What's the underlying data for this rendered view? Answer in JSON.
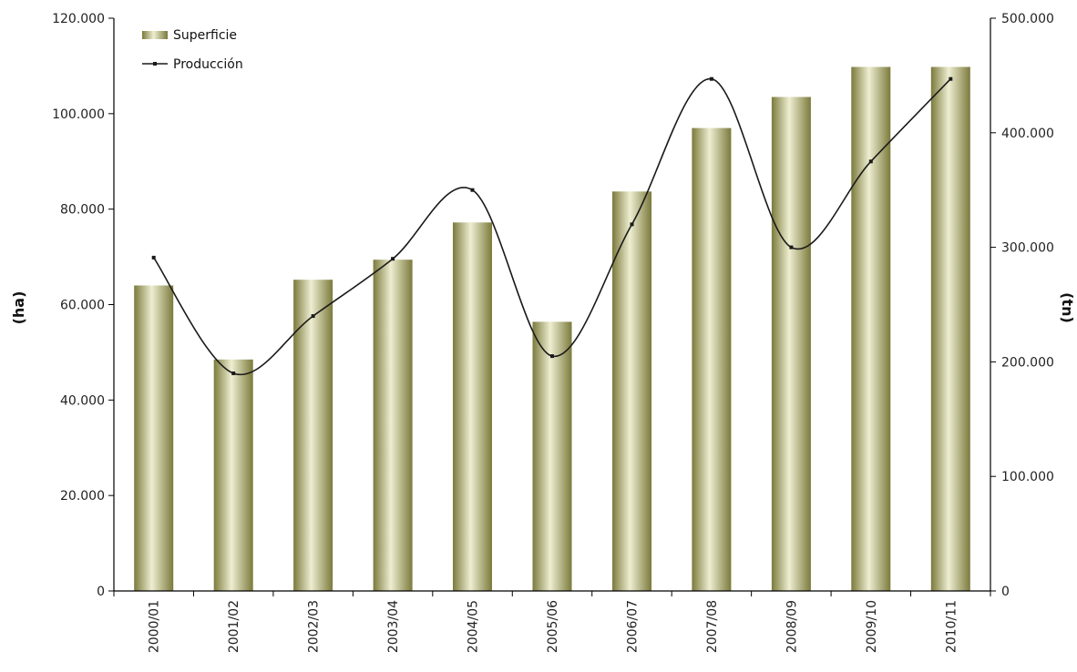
{
  "chart_data": {
    "type": "bar",
    "title": "",
    "categories": [
      "2000/01",
      "2001/02",
      "2002/03",
      "2003/04",
      "2004/05",
      "2005/06",
      "2006/07",
      "2007/08",
      "2008/09",
      "2009/10",
      "2010/11"
    ],
    "series": [
      {
        "name": "Superficie",
        "type": "bar",
        "axis": "left",
        "values": [
          64000,
          48500,
          65200,
          69400,
          77200,
          56400,
          83700,
          97000,
          103500,
          109800,
          109800
        ]
      },
      {
        "name": "Producción",
        "type": "line",
        "axis": "right",
        "smooth": true,
        "values": [
          291000,
          190000,
          240000,
          290000,
          350000,
          205000,
          320000,
          447000,
          300000,
          375000,
          447000
        ]
      }
    ],
    "ylabel": "(ha)",
    "y2label": "(tn)",
    "ylim": [
      0,
      120000
    ],
    "y2lim": [
      0,
      500000
    ],
    "yticks": [
      "0",
      "20.000",
      "40.000",
      "60.000",
      "80.000",
      "100.000",
      "120.000"
    ],
    "y2ticks": [
      "0",
      "100.000",
      "200.000",
      "300.000",
      "400.000",
      "500.000"
    ],
    "grid": false,
    "legend_position": "top-left",
    "colors": {
      "bar_dark": "#7b7a3c",
      "bar_light": "#eeeed2",
      "line": "#1a1a1a",
      "axis": "#000000"
    }
  }
}
